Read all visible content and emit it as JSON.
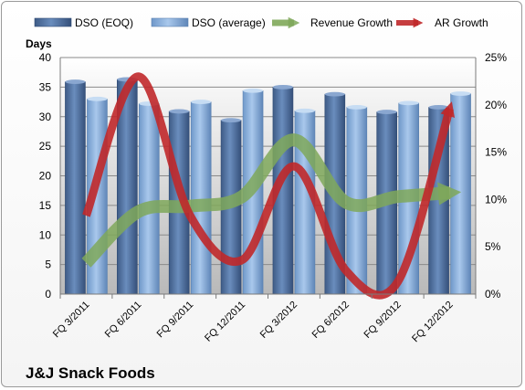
{
  "company": "J&J Snack Foods",
  "chart_data": {
    "type": "bar",
    "title": "",
    "ylabel": "Days",
    "ylim": [
      0,
      40
    ],
    "yticks": [
      0,
      5,
      10,
      15,
      20,
      25,
      30,
      35,
      40
    ],
    "y2lim": [
      0,
      0.25
    ],
    "y2ticks": [
      "0%",
      "5%",
      "10%",
      "15%",
      "20%",
      "25%"
    ],
    "xtick_labels": [
      "FQ 3/2011",
      "FQ 6/2011",
      "FQ 9/2011",
      "FQ 12/2011",
      "FQ 3/2012",
      "FQ 6/2012",
      "FQ 9/2012",
      "FQ 12/2012"
    ],
    "categories": [
      "FQ 3/2011",
      "FQ 6/2011",
      "FQ 9/2011",
      "FQ 12/2011",
      "FQ 3/2012",
      "FQ 6/2012",
      "FQ 9/2012",
      "FQ 12/2012"
    ],
    "grid": true,
    "legend_position": "top",
    "series": [
      {
        "name": "DSO (EOQ)",
        "kind": "bar",
        "axis": "left",
        "color": "#4f6f9f",
        "values": [
          35.9,
          36.3,
          30.9,
          29.4,
          35.0,
          33.8,
          30.8,
          31.6
        ]
      },
      {
        "name": "DSO (average)",
        "kind": "bar",
        "axis": "left",
        "color": "#8fb4de",
        "values": [
          33.0,
          32.2,
          32.5,
          34.4,
          31.0,
          31.6,
          32.3,
          33.9
        ]
      },
      {
        "name": "Revenue Growth",
        "kind": "line",
        "axis": "right",
        "color": "#7fa85a",
        "values": [
          0.033,
          0.087,
          0.093,
          0.103,
          0.163,
          0.097,
          0.103,
          0.107
        ]
      },
      {
        "name": "AR Growth",
        "kind": "line",
        "axis": "right",
        "color": "#c0282a",
        "values": [
          0.083,
          0.23,
          0.083,
          0.036,
          0.135,
          0.025,
          0.013,
          0.196
        ]
      }
    ]
  }
}
